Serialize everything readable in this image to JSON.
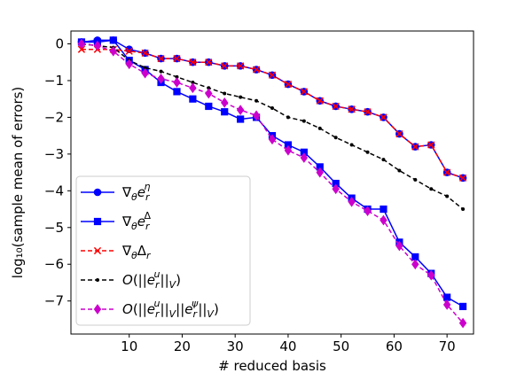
{
  "chart_data": {
    "type": "line",
    "title": "",
    "xlabel": "# reduced basis",
    "ylabel": "log₁₀(sample mean of errors)",
    "xlim": [
      -1,
      75
    ],
    "ylim": [
      -7.9,
      0.35
    ],
    "x_ticks": [
      10,
      20,
      30,
      40,
      50,
      60,
      70
    ],
    "y_ticks": [
      0,
      -1,
      -2,
      -3,
      -4,
      -5,
      -6,
      -7
    ],
    "grid": false,
    "legend_position": "bottom-left",
    "x": [
      1,
      4,
      7,
      10,
      13,
      16,
      19,
      22,
      25,
      28,
      31,
      34,
      37,
      40,
      43,
      46,
      49,
      52,
      55,
      58,
      61,
      64,
      67,
      70,
      73
    ],
    "series": [
      {
        "name": "∇θe_r^η",
        "color": "#0000ff",
        "marker": "circle",
        "dash": "solid",
        "values": [
          0.05,
          0.1,
          0.1,
          -0.15,
          -0.25,
          -0.4,
          -0.4,
          -0.5,
          -0.5,
          -0.6,
          -0.6,
          -0.7,
          -0.85,
          -1.1,
          -1.3,
          -1.55,
          -1.7,
          -1.78,
          -1.85,
          -2.0,
          -2.45,
          -2.8,
          -2.75,
          -3.5,
          -3.65
        ]
      },
      {
        "name": "∇θe_r^Δ",
        "color": "#0000ff",
        "marker": "square",
        "dash": "solid",
        "values": [
          0.05,
          0.05,
          0.1,
          -0.45,
          -0.7,
          -1.05,
          -1.3,
          -1.5,
          -1.7,
          -1.85,
          -2.05,
          -2.0,
          -2.5,
          -2.75,
          -2.95,
          -3.35,
          -3.8,
          -4.2,
          -4.5,
          -4.5,
          -5.4,
          -5.8,
          -6.25,
          -6.9,
          -7.15
        ]
      },
      {
        "name": "∇θΔ_r",
        "color": "#ff0000",
        "marker": "x",
        "dash": "dashed",
        "values": [
          -0.15,
          -0.15,
          -0.15,
          -0.2,
          -0.25,
          -0.4,
          -0.4,
          -0.5,
          -0.5,
          -0.6,
          -0.6,
          -0.7,
          -0.85,
          -1.1,
          -1.3,
          -1.55,
          -1.7,
          -1.78,
          -1.85,
          -2.0,
          -2.45,
          -2.8,
          -2.75,
          -3.5,
          -3.65
        ]
      },
      {
        "name": "O(||e_r^u||_V)",
        "color": "#000000",
        "marker": "dot",
        "dash": "dashed",
        "values": [
          0.0,
          -0.05,
          -0.1,
          -0.45,
          -0.65,
          -0.75,
          -0.9,
          -1.05,
          -1.2,
          -1.35,
          -1.45,
          -1.55,
          -1.75,
          -2.0,
          -2.1,
          -2.3,
          -2.55,
          -2.75,
          -2.95,
          -3.15,
          -3.45,
          -3.7,
          -3.95,
          -4.15,
          -4.5
        ]
      },
      {
        "name": "O(||e_r^u||_V||e_r^ψ||_V)",
        "color": "#cc00cc",
        "marker": "diamond",
        "dash": "dashed",
        "values": [
          0.0,
          -0.05,
          -0.2,
          -0.55,
          -0.8,
          -0.95,
          -1.05,
          -1.2,
          -1.35,
          -1.6,
          -1.8,
          -1.95,
          -2.6,
          -2.9,
          -3.1,
          -3.5,
          -3.95,
          -4.3,
          -4.55,
          -4.8,
          -5.5,
          -6.0,
          -6.3,
          -7.1,
          -7.6
        ]
      }
    ]
  }
}
